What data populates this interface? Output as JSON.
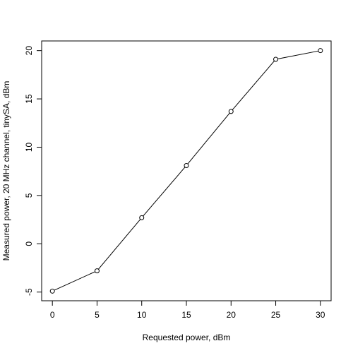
{
  "chart_data": {
    "type": "line",
    "x_label": "Requested power, dBm",
    "y_label": "Measured power, 20 MHz channel, tinySA, dBm",
    "x": [
      0,
      5,
      10,
      15,
      20,
      25,
      30
    ],
    "values": [
      -4.9,
      -2.8,
      2.7,
      8.1,
      13.7,
      19.1,
      20.0
    ],
    "color": "#000000",
    "xlim": [
      -1.2,
      31.2
    ],
    "ylim": [
      -5.9,
      21
    ],
    "xticks": [
      0,
      5,
      10,
      15,
      20,
      25,
      30
    ],
    "yticks": [
      -5,
      0,
      5,
      10,
      15,
      20
    ]
  }
}
